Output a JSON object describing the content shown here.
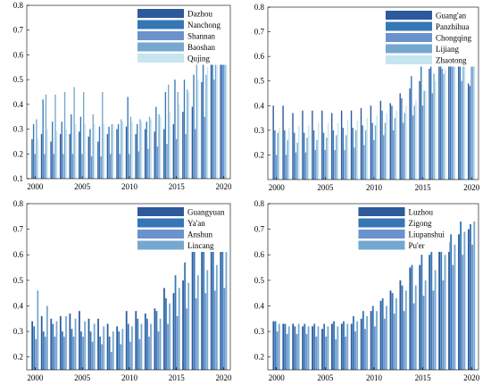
{
  "chart_data": [
    {
      "type": "bar",
      "x": [
        2000,
        2001,
        2002,
        2003,
        2004,
        2005,
        2006,
        2007,
        2008,
        2009,
        2010,
        2011,
        2012,
        2013,
        2014,
        2015,
        2016,
        2017,
        2018,
        2019,
        2020
      ],
      "xticks": [
        2000,
        2005,
        2010,
        2015,
        2020
      ],
      "ylim": [
        0.1,
        0.8
      ],
      "yticks": [
        0.1,
        0.2,
        0.3,
        0.4,
        0.5,
        0.6,
        0.7,
        0.8
      ],
      "legend_position": "top-right",
      "series": [
        {
          "name": "Dazhou",
          "color": "#2c5a9c",
          "values": [
            0.26,
            0.28,
            0.25,
            0.28,
            0.28,
            0.29,
            0.27,
            0.25,
            0.28,
            0.3,
            0.31,
            0.28,
            0.3,
            0.29,
            0.3,
            0.32,
            0.37,
            0.39,
            0.49,
            0.62,
            0.62
          ]
        },
        {
          "name": "Nanchong",
          "color": "#3576b6",
          "values": [
            0.32,
            0.42,
            0.33,
            0.33,
            0.36,
            0.35,
            0.3,
            0.31,
            0.31,
            0.32,
            0.43,
            0.32,
            0.33,
            0.39,
            0.45,
            0.5,
            0.5,
            0.52,
            0.6,
            0.76,
            0.75
          ]
        },
        {
          "name": "Shannan",
          "color": "#6b92cc",
          "values": [
            0.2,
            0.2,
            0.2,
            0.2,
            0.2,
            0.2,
            0.19,
            0.19,
            0.2,
            0.2,
            0.2,
            0.21,
            0.22,
            0.23,
            0.24,
            0.26,
            0.28,
            0.3,
            0.35,
            0.5,
            0.65
          ]
        },
        {
          "name": "Baoshan",
          "color": "#74a8cf",
          "values": [
            0.34,
            0.44,
            0.44,
            0.45,
            0.47,
            0.45,
            0.36,
            0.45,
            0.32,
            0.34,
            0.35,
            0.34,
            0.35,
            0.36,
            0.48,
            0.45,
            0.46,
            0.6,
            0.52,
            0.75,
            0.69
          ]
        },
        {
          "name": "Qujing",
          "color": "#c6e5ee",
          "values": [
            0.26,
            0.3,
            0.29,
            0.3,
            0.32,
            0.32,
            0.32,
            0.32,
            0.32,
            0.33,
            0.33,
            0.33,
            0.34,
            0.35,
            0.37,
            0.4,
            0.45,
            0.5,
            0.55,
            0.63,
            0.71
          ]
        }
      ]
    },
    {
      "type": "bar",
      "x": [
        2000,
        2001,
        2002,
        2003,
        2004,
        2005,
        2006,
        2007,
        2008,
        2009,
        2010,
        2011,
        2012,
        2013,
        2014,
        2015,
        2016,
        2017,
        2018,
        2019,
        2020
      ],
      "xticks": [
        2000,
        2005,
        2010,
        2015,
        2020
      ],
      "ylim": [
        0.1,
        0.8
      ],
      "yticks": [
        0.2,
        0.3,
        0.4,
        0.5,
        0.6,
        0.7,
        0.8
      ],
      "legend_position": "top-right",
      "series": [
        {
          "name": "Guang'an",
          "color": "#2c5a9c",
          "values": [
            0.4,
            0.4,
            0.37,
            0.38,
            0.38,
            0.38,
            0.37,
            0.38,
            0.38,
            0.39,
            0.4,
            0.42,
            0.41,
            0.45,
            0.47,
            0.5,
            0.55,
            0.66,
            0.6,
            0.64,
            0.49
          ]
        },
        {
          "name": "Panzhihua",
          "color": "#3576b6",
          "values": [
            0.3,
            0.3,
            0.29,
            0.29,
            0.3,
            0.29,
            0.3,
            0.31,
            0.31,
            0.32,
            0.33,
            0.38,
            0.4,
            0.43,
            0.52,
            0.58,
            0.6,
            0.73,
            0.63,
            0.74,
            0.48
          ]
        },
        {
          "name": "Chongqing",
          "color": "#6b92cc",
          "values": [
            0.2,
            0.2,
            0.21,
            0.21,
            0.22,
            0.22,
            0.22,
            0.22,
            0.23,
            0.24,
            0.26,
            0.28,
            0.3,
            0.33,
            0.36,
            0.4,
            0.45,
            0.55,
            0.6,
            0.5,
            0.68
          ]
        },
        {
          "name": "Lijiang",
          "color": "#74a8cf",
          "values": [
            0.29,
            0.26,
            0.25,
            0.27,
            0.26,
            0.27,
            0.28,
            0.28,
            0.3,
            0.3,
            0.32,
            0.33,
            0.35,
            0.37,
            0.4,
            0.46,
            0.53,
            0.53,
            0.63,
            0.67,
            0.7
          ]
        },
        {
          "name": "Zhaotong",
          "color": "#c6e5ee",
          "values": [
            0.31,
            0.31,
            0.32,
            0.32,
            0.33,
            0.33,
            0.33,
            0.34,
            0.34,
            0.35,
            0.36,
            0.37,
            0.38,
            0.4,
            0.42,
            0.46,
            0.5,
            0.55,
            0.62,
            0.7,
            0.77
          ]
        }
      ]
    },
    {
      "type": "bar",
      "x": [
        2000,
        2001,
        2002,
        2003,
        2004,
        2005,
        2006,
        2007,
        2008,
        2009,
        2010,
        2011,
        2012,
        2013,
        2014,
        2015,
        2016,
        2017,
        2018,
        2019,
        2020
      ],
      "xticks": [
        2000,
        2005,
        2010,
        2015,
        2020
      ],
      "ylim": [
        0.15,
        0.8
      ],
      "yticks": [
        0.2,
        0.3,
        0.4,
        0.5,
        0.6,
        0.7,
        0.8
      ],
      "legend_position": "top-right",
      "series": [
        {
          "name": "Guangyuan",
          "color": "#2c5a9c",
          "values": [
            0.34,
            0.36,
            0.35,
            0.36,
            0.37,
            0.38,
            0.35,
            0.35,
            0.33,
            0.32,
            0.38,
            0.38,
            0.37,
            0.39,
            0.47,
            0.45,
            0.5,
            0.62,
            0.63,
            0.69,
            0.68
          ]
        },
        {
          "name": "Ya'an",
          "color": "#3576b6",
          "values": [
            0.32,
            0.3,
            0.33,
            0.3,
            0.31,
            0.3,
            0.3,
            0.28,
            0.28,
            0.3,
            0.33,
            0.35,
            0.35,
            0.38,
            0.43,
            0.52,
            0.57,
            0.65,
            0.65,
            0.68,
            0.66
          ]
        },
        {
          "name": "Anshun",
          "color": "#6b92cc",
          "values": [
            0.27,
            0.28,
            0.28,
            0.28,
            0.28,
            0.28,
            0.26,
            0.25,
            0.22,
            0.25,
            0.26,
            0.27,
            0.28,
            0.3,
            0.33,
            0.36,
            0.39,
            0.43,
            0.45,
            0.46,
            0.47
          ]
        },
        {
          "name": "Lincang",
          "color": "#74a8cf",
          "values": [
            0.46,
            0.4,
            0.34,
            0.36,
            0.35,
            0.34,
            0.33,
            0.32,
            0.3,
            0.31,
            0.32,
            0.33,
            0.33,
            0.35,
            0.41,
            0.47,
            0.49,
            0.52,
            0.54,
            0.56,
            0.68
          ]
        }
      ]
    },
    {
      "type": "bar",
      "x": [
        2000,
        2001,
        2002,
        2003,
        2004,
        2005,
        2006,
        2007,
        2008,
        2009,
        2010,
        2011,
        2012,
        2013,
        2014,
        2015,
        2016,
        2017,
        2018,
        2019,
        2020
      ],
      "xticks": [
        2000,
        2005,
        2010,
        2015,
        2020
      ],
      "ylim": [
        0.15,
        0.8
      ],
      "yticks": [
        0.2,
        0.3,
        0.4,
        0.5,
        0.6,
        0.7,
        0.8
      ],
      "legend_position": "top-left",
      "series": [
        {
          "name": "Luzhou",
          "color": "#2c5a9c",
          "values": [
            0.34,
            0.33,
            0.33,
            0.32,
            0.32,
            0.31,
            0.33,
            0.33,
            0.33,
            0.35,
            0.38,
            0.42,
            0.46,
            0.5,
            0.55,
            0.56,
            0.6,
            0.62,
            0.65,
            0.68,
            0.7
          ]
        },
        {
          "name": "Zigong",
          "color": "#3576b6",
          "values": [
            0.34,
            0.33,
            0.32,
            0.33,
            0.33,
            0.33,
            0.34,
            0.34,
            0.36,
            0.38,
            0.4,
            0.43,
            0.45,
            0.48,
            0.56,
            0.6,
            0.62,
            0.64,
            0.68,
            0.73,
            0.72
          ]
        },
        {
          "name": "Liupanshui",
          "color": "#6b92cc",
          "values": [
            0.3,
            0.29,
            0.29,
            0.29,
            0.28,
            0.28,
            0.27,
            0.28,
            0.3,
            0.31,
            0.32,
            0.35,
            0.37,
            0.38,
            0.41,
            0.44,
            0.46,
            0.5,
            0.56,
            0.6,
            0.64
          ]
        },
        {
          "name": "Pu'er",
          "color": "#74a8cf",
          "values": [
            0.33,
            0.32,
            0.33,
            0.32,
            0.32,
            0.32,
            0.32,
            0.33,
            0.34,
            0.36,
            0.38,
            0.4,
            0.43,
            0.46,
            0.48,
            0.5,
            0.54,
            0.6,
            0.64,
            0.69,
            0.73
          ]
        }
      ]
    }
  ]
}
